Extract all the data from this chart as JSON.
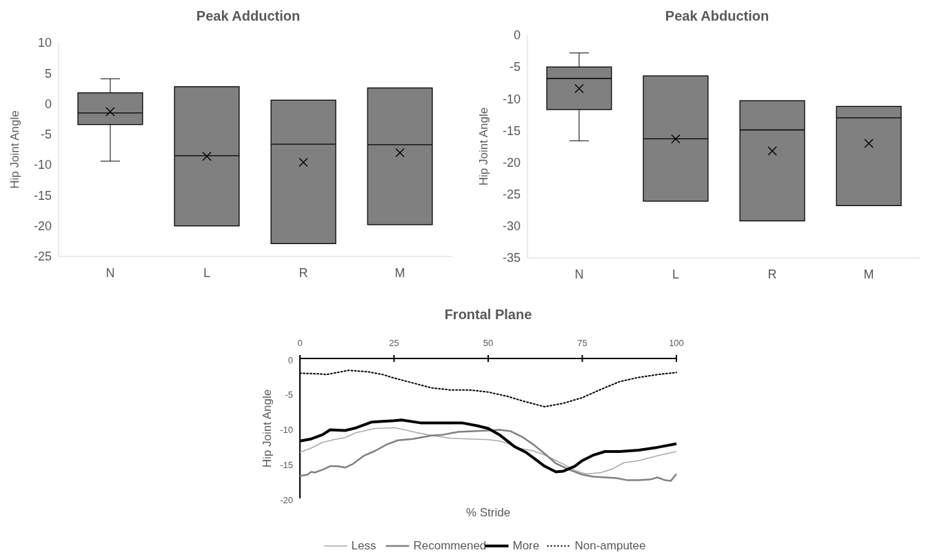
{
  "chart_data": [
    {
      "type": "box",
      "title": "Peak Adduction",
      "ylabel": "Hip Joint Angle",
      "categories": [
        "N",
        "L",
        "R",
        "M"
      ],
      "color": "#808080",
      "ylim": [
        -25,
        10
      ],
      "yticks": [
        10,
        5,
        0,
        -5,
        -10,
        -15,
        -20,
        -25
      ],
      "boxes": [
        {
          "low": -9.4,
          "q1": -3.4,
          "median": -1.5,
          "q3": 1.8,
          "high": 4.1,
          "mean": -1.3
        },
        {
          "low": -20.0,
          "q1": -20.0,
          "median": -8.5,
          "q3": 2.8,
          "high": 2.8,
          "mean": -8.6
        },
        {
          "low": -22.9,
          "q1": -22.9,
          "median": -6.6,
          "q3": 0.6,
          "high": 0.6,
          "mean": -9.6
        },
        {
          "low": -19.8,
          "q1": -19.8,
          "median": -6.7,
          "q3": 2.6,
          "high": 2.6,
          "mean": -8.0
        }
      ]
    },
    {
      "type": "box",
      "title": "Peak Abduction",
      "ylabel": "Hip Joint Angle",
      "categories": [
        "N",
        "L",
        "R",
        "M"
      ],
      "color": "#808080",
      "ylim": [
        -35,
        0
      ],
      "yticks": [
        0,
        -5,
        -10,
        -15,
        -20,
        -25,
        -30,
        -35
      ],
      "boxes": [
        {
          "low": -16.6,
          "q1": -11.7,
          "median": -6.8,
          "q3": -5.0,
          "high": -2.8,
          "mean": -8.4
        },
        {
          "low": -26.1,
          "q1": -26.1,
          "median": -16.3,
          "q3": -6.4,
          "high": -6.4,
          "mean": -16.3
        },
        {
          "low": -29.2,
          "q1": -29.2,
          "median": -14.9,
          "q3": -10.3,
          "high": -10.3,
          "mean": -18.2
        },
        {
          "low": -26.8,
          "q1": -26.8,
          "median": -13.0,
          "q3": -11.2,
          "high": -11.2,
          "mean": -17.0
        }
      ]
    },
    {
      "type": "line",
      "title": "Frontal Plane",
      "xlabel": "% Stride",
      "ylabel": "Hip Joint Angle",
      "xlim": [
        0,
        100
      ],
      "xticks": [
        0,
        25,
        50,
        75,
        100
      ],
      "ylim": [
        -20,
        0
      ],
      "yticks": [
        0,
        -5,
        -10,
        -15,
        -20
      ],
      "legend": "bottom",
      "marker": "none",
      "series": [
        {
          "name": "Less",
          "color": "#aaaaaa",
          "line_style": "solid",
          "x": [
            0,
            3,
            6,
            9,
            12,
            15,
            20,
            25,
            27,
            31,
            35,
            40,
            45,
            50,
            53,
            55,
            58,
            62,
            65,
            70,
            73,
            76,
            80,
            83,
            86,
            90,
            95,
            100
          ],
          "values": [
            -13.4,
            -12.8,
            -12.0,
            -11.6,
            -11.3,
            -10.6,
            -10.0,
            -9.9,
            -10.1,
            -10.6,
            -11.0,
            -11.4,
            -11.5,
            -11.6,
            -11.8,
            -12.1,
            -12.8,
            -13.2,
            -13.8,
            -15.1,
            -16.0,
            -16.5,
            -16.3,
            -15.8,
            -14.9,
            -14.6,
            -13.9,
            -13.3
          ]
        },
        {
          "name": "Recommened",
          "color": "#808080",
          "line_style": "solid",
          "x": [
            0,
            2,
            3,
            4,
            6,
            8,
            10,
            12,
            14,
            17,
            20,
            23,
            26,
            30,
            35,
            38,
            42,
            46,
            50,
            53,
            56,
            59,
            62,
            65,
            68,
            72,
            75,
            78,
            81,
            84,
            87,
            90,
            93,
            95,
            97,
            98.5,
            100
          ],
          "values": [
            -16.8,
            -16.6,
            -16.2,
            -16.3,
            -15.9,
            -15.4,
            -15.4,
            -15.6,
            -15.1,
            -13.9,
            -13.2,
            -12.3,
            -11.7,
            -11.5,
            -11.0,
            -10.9,
            -10.5,
            -10.4,
            -10.3,
            -10.2,
            -10.4,
            -11.2,
            -12.3,
            -13.6,
            -15.0,
            -16.0,
            -16.6,
            -16.9,
            -17.0,
            -17.1,
            -17.4,
            -17.4,
            -17.3,
            -17.0,
            -17.4,
            -17.5,
            -16.5
          ]
        },
        {
          "name": "More",
          "color": "#000000",
          "line_style": "solid",
          "x": [
            0,
            3,
            6,
            8,
            12,
            15,
            19,
            25,
            27,
            32,
            40,
            43,
            47,
            50,
            53,
            57,
            60,
            63,
            65,
            68,
            70,
            73,
            75,
            78,
            81,
            85,
            90,
            95,
            100
          ],
          "values": [
            -11.8,
            -11.5,
            -10.9,
            -10.2,
            -10.3,
            -9.9,
            -9.1,
            -8.9,
            -8.8,
            -9.2,
            -9.2,
            -9.2,
            -9.6,
            -10.0,
            -10.9,
            -12.6,
            -13.4,
            -14.6,
            -15.4,
            -16.2,
            -16.1,
            -15.4,
            -14.6,
            -13.8,
            -13.3,
            -13.3,
            -13.1,
            -12.7,
            -12.2
          ]
        },
        {
          "name": "Non-amputee",
          "color": "#000000",
          "line_style": "dotted",
          "x": [
            0,
            5,
            7,
            10,
            13,
            18,
            22,
            25,
            30,
            35,
            40,
            45,
            50,
            55,
            60,
            65,
            70,
            75,
            80,
            85,
            90,
            95,
            100
          ],
          "values": [
            -2.1,
            -2.2,
            -2.3,
            -2.0,
            -1.7,
            -1.9,
            -2.3,
            -2.8,
            -3.5,
            -4.2,
            -4.5,
            -4.5,
            -4.8,
            -5.4,
            -6.2,
            -6.9,
            -6.4,
            -5.6,
            -4.4,
            -3.3,
            -2.7,
            -2.3,
            -2.0
          ]
        }
      ]
    }
  ]
}
